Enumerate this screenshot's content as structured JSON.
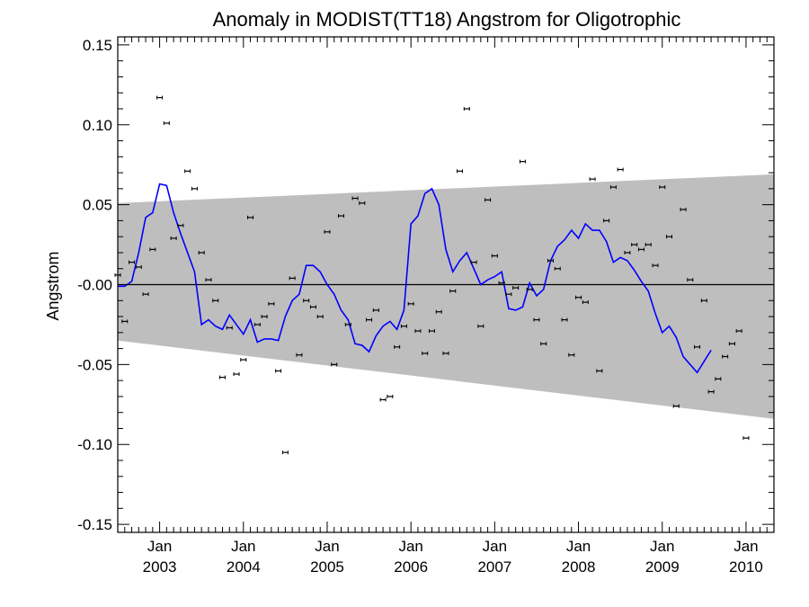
{
  "chart_data": {
    "type": "line",
    "title": "Anomaly in MODIST(TT18) Angstrom for Oligotrophic",
    "ylabel": "Angstrom",
    "xlabel": "",
    "ylim": [
      -0.155,
      0.155
    ],
    "xlim": [
      "2002-07-01",
      "2010-05-01"
    ],
    "y_ticks": [
      "0.15",
      "0.10",
      "0.05",
      "-0.00",
      "-0.05",
      "-0.10",
      "-0.15"
    ],
    "x_ticks": [
      {
        "month": "Jan",
        "year": "2003"
      },
      {
        "month": "Jan",
        "year": "2004"
      },
      {
        "month": "Jan",
        "year": "2005"
      },
      {
        "month": "Jan",
        "year": "2006"
      },
      {
        "month": "Jan",
        "year": "2007"
      },
      {
        "month": "Jan",
        "year": "2008"
      },
      {
        "month": "Jan",
        "year": "2009"
      },
      {
        "month": "Jan",
        "year": "2010"
      }
    ],
    "zero_line": 0,
    "confidence_band": {
      "start": {
        "x": "2002-07-01",
        "upper": 0.051,
        "lower": -0.035
      },
      "end": {
        "x": "2010-05-01",
        "upper": 0.069,
        "lower": -0.084
      },
      "color": "#bebebe"
    },
    "monthly_points": {
      "start": "2002-07",
      "values": [
        0.006,
        -0.023,
        0.014,
        0.011,
        -0.006,
        0.022,
        0.117,
        0.101,
        0.029,
        0.037,
        0.071,
        0.06,
        0.02,
        0.003,
        -0.01,
        -0.058,
        -0.027,
        -0.056,
        -0.047,
        0.042,
        -0.025,
        -0.02,
        -0.012,
        -0.054,
        -0.105,
        0.004,
        -0.044,
        -0.01,
        -0.014,
        -0.02,
        0.033,
        -0.05,
        0.043,
        -0.025,
        0.054,
        0.051,
        -0.022,
        -0.016,
        -0.072,
        -0.07,
        -0.039,
        -0.026,
        -0.012,
        -0.029,
        -0.043,
        -0.029,
        -0.017,
        -0.043,
        -0.004,
        0.071,
        0.11,
        0.014,
        -0.026,
        0.053,
        0.018,
        0.001,
        -0.006,
        -0.002,
        0.077,
        -0.003,
        -0.022,
        -0.037,
        0.015,
        0.01,
        -0.022,
        -0.044,
        -0.008,
        -0.011,
        0.066,
        -0.054,
        0.04,
        0.061,
        0.072,
        0.02,
        0.025,
        0.022,
        0.025,
        0.012,
        0.061,
        0.03,
        -0.076,
        0.047,
        0.003,
        -0.039,
        -0.01,
        -0.067,
        -0.059,
        -0.045,
        -0.037,
        -0.029,
        -0.096
      ],
      "color": "#000000"
    },
    "smoothed_series": {
      "start": "2002-07",
      "values": [
        -0.001,
        -0.001,
        0.002,
        0.02,
        0.042,
        0.045,
        0.063,
        0.062,
        0.045,
        0.032,
        0.02,
        0.008,
        -0.025,
        -0.022,
        -0.026,
        -0.028,
        -0.019,
        -0.025,
        -0.031,
        -0.022,
        -0.036,
        -0.034,
        -0.034,
        -0.035,
        -0.02,
        -0.01,
        -0.006,
        0.012,
        0.012,
        0.008,
        0.0,
        -0.006,
        -0.016,
        -0.022,
        -0.037,
        -0.038,
        -0.042,
        -0.032,
        -0.026,
        -0.023,
        -0.028,
        -0.016,
        0.038,
        0.043,
        0.057,
        0.06,
        0.05,
        0.022,
        0.008,
        0.015,
        0.02,
        0.01,
        0.0,
        0.003,
        0.005,
        0.008,
        -0.015,
        -0.016,
        -0.014,
        0.001,
        -0.007,
        -0.003,
        0.015,
        0.024,
        0.028,
        0.034,
        0.029,
        0.038,
        0.034,
        0.034,
        0.027,
        0.014,
        0.017,
        0.015,
        0.009,
        0.002,
        -0.004,
        -0.018,
        -0.03,
        -0.026,
        -0.033,
        -0.045,
        -0.05,
        -0.055,
        -0.048,
        -0.041
      ],
      "color": "#0000ff"
    }
  }
}
